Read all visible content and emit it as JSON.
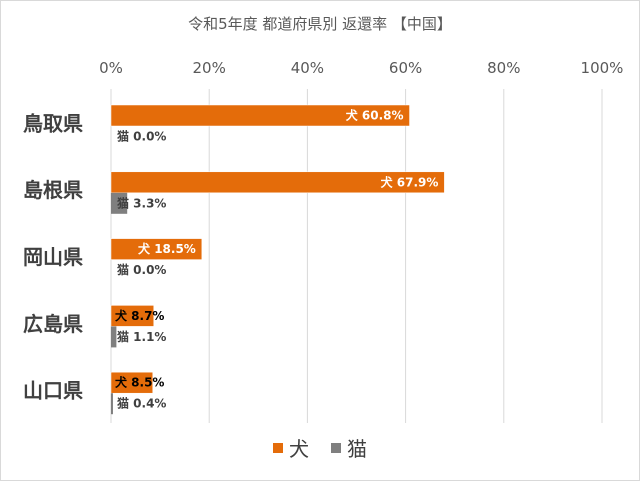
{
  "chart_data": {
    "type": "bar",
    "orientation": "horizontal",
    "title": "令和5年度 都道府県別 返還率 【中国】",
    "categories": [
      "鳥取県",
      "島根県",
      "岡山県",
      "広島県",
      "山口県"
    ],
    "series": [
      {
        "name": "犬",
        "color": "#E46C0A",
        "values": [
          60.8,
          67.9,
          18.5,
          8.7,
          8.5
        ],
        "labels": [
          "犬 60.8%",
          "犬 67.9%",
          "犬 18.5%",
          "犬 8.7%",
          "犬 8.5%"
        ]
      },
      {
        "name": "猫",
        "color": "#7F7F7F",
        "values": [
          0.0,
          3.3,
          0.0,
          1.1,
          0.4
        ],
        "labels": [
          "猫 0.0%",
          "猫 3.3%",
          "猫 0.0%",
          "猫 1.1%",
          "猫 0.4%"
        ]
      }
    ],
    "x_ticks": [
      "0%",
      "20%",
      "40%",
      "60%",
      "80%",
      "100%"
    ],
    "xlim": [
      0,
      100
    ],
    "grid": true,
    "legend_position": "bottom"
  }
}
